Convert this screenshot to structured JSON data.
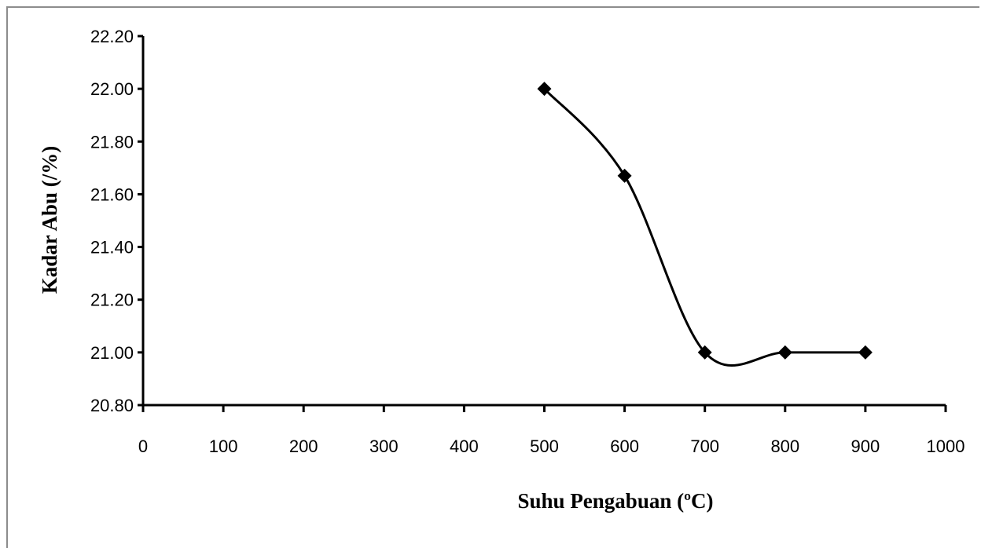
{
  "chart_data": {
    "type": "line",
    "title": "",
    "xlabel": "Suhu Pengabuan (ºC)",
    "ylabel": "Kadar Abu (/%)",
    "xlim": [
      0,
      1000
    ],
    "ylim": [
      20.8,
      22.2
    ],
    "xticks": [
      "0",
      "100",
      "200",
      "300",
      "400",
      "500",
      "600",
      "700",
      "800",
      "900",
      "1000"
    ],
    "yticks": [
      "20.80",
      "21.00",
      "21.20",
      "21.40",
      "21.60",
      "21.80",
      "22.00",
      "22.20"
    ],
    "grid": false,
    "legend": "none",
    "smooth": true,
    "series": [
      {
        "color": "#000000",
        "marker": "diamond",
        "x": [
          500,
          600,
          700,
          800,
          900
        ],
        "y": [
          22.0,
          21.67,
          21.0,
          21.0,
          21.0
        ]
      }
    ]
  }
}
